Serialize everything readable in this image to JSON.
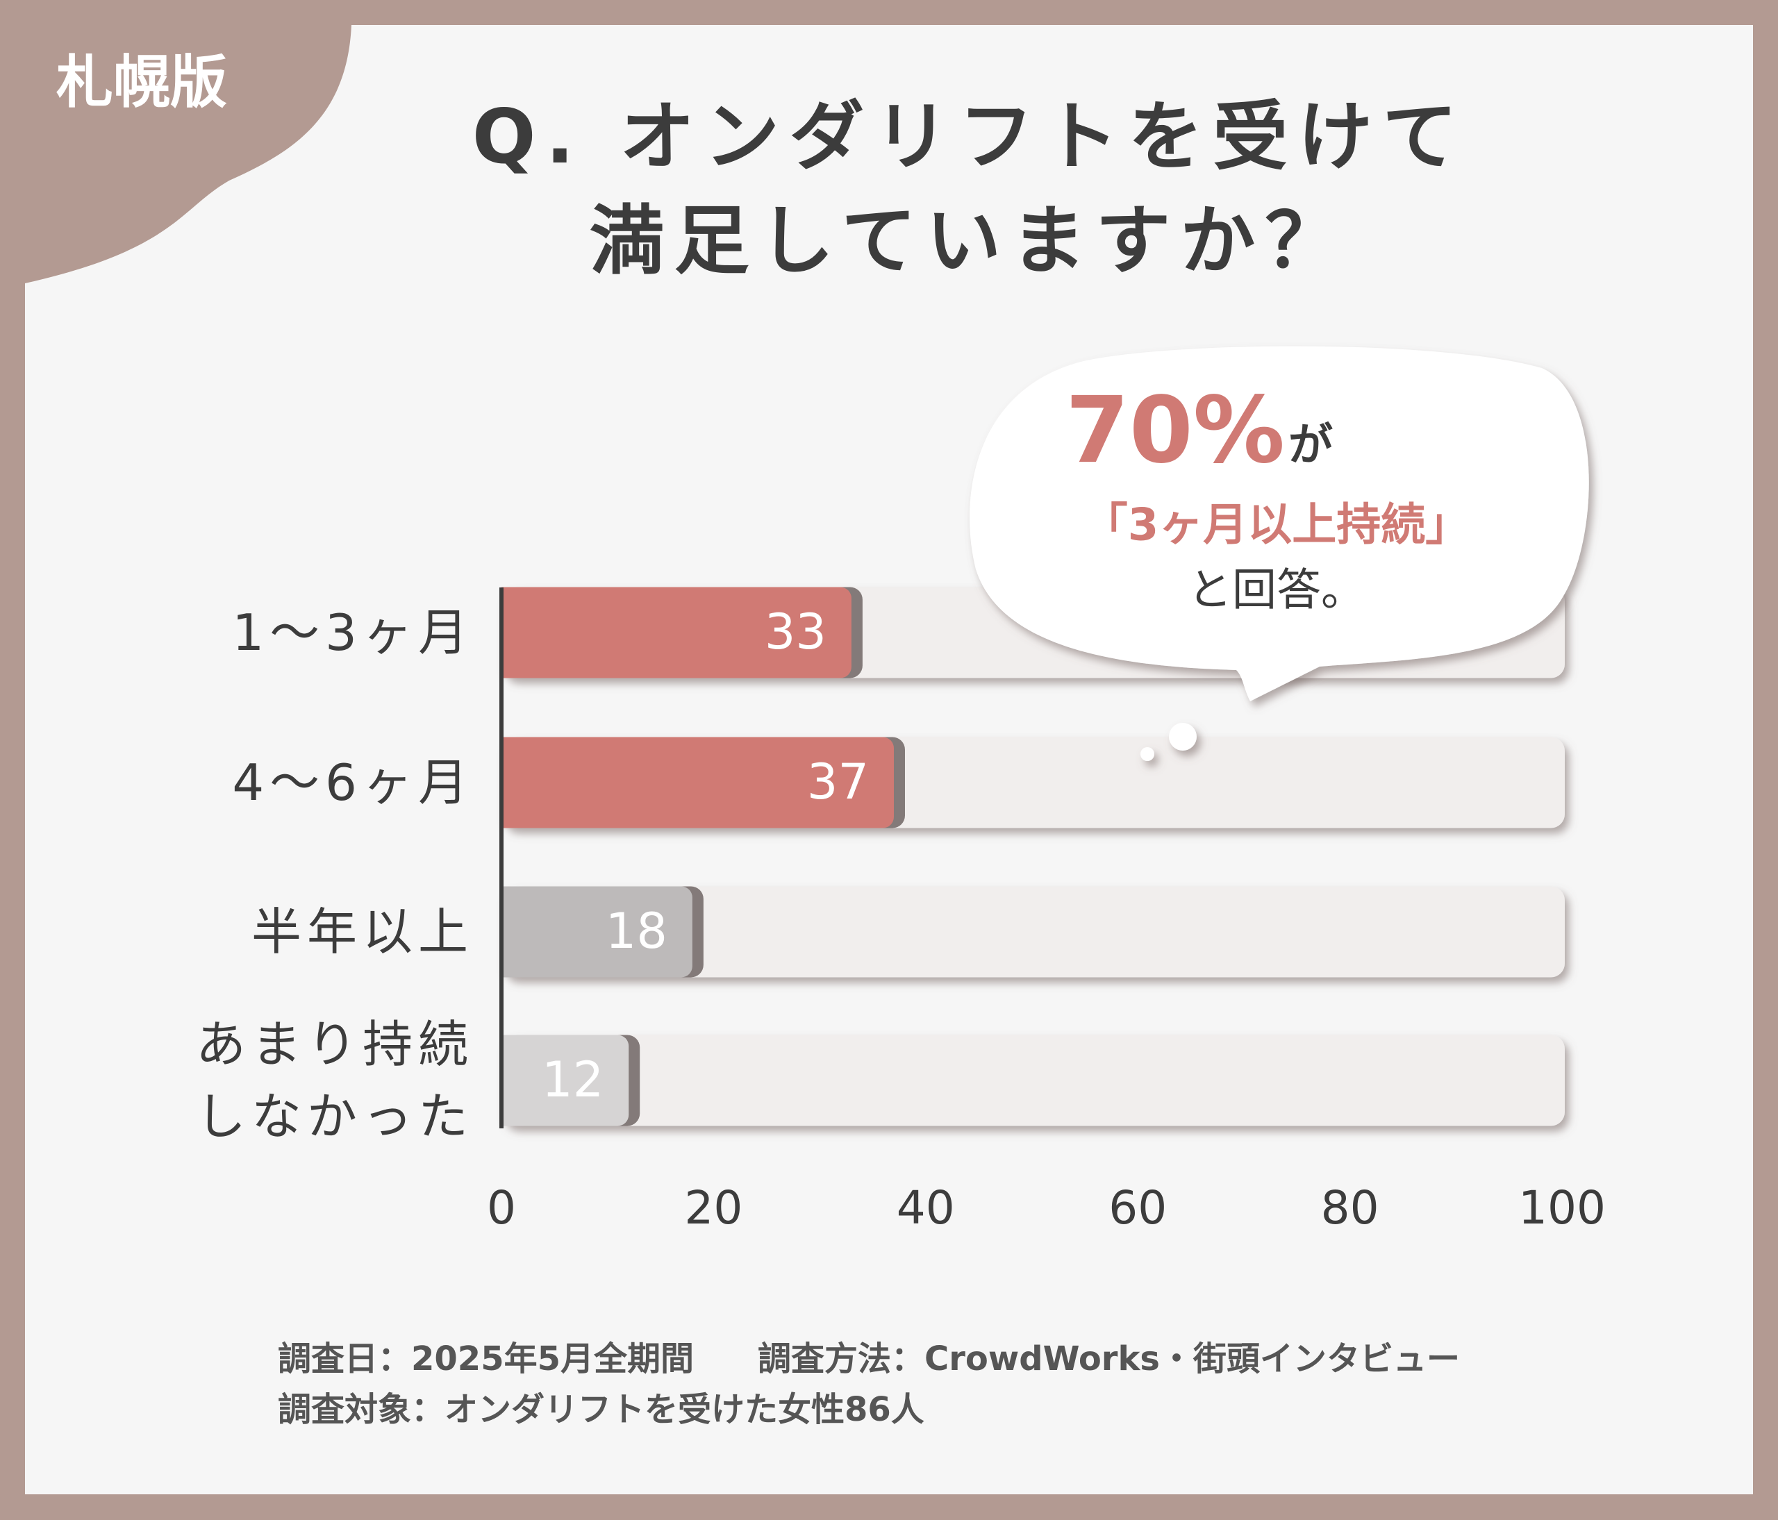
{
  "badge": "札幌版",
  "chart_data": {
    "type": "bar",
    "orientation": "horizontal",
    "title": [
      "Q. オンダリフトを受けて",
      "満足していますか？"
    ],
    "categories": [
      "1〜3ヶ月",
      "4〜6ヶ月",
      "半年以上",
      "あまり持続しなかった"
    ],
    "values": [
      33,
      37,
      18,
      12
    ],
    "colors": [
      "#d07a74",
      "#d07a74",
      "#bdbaba",
      "#d6d4d4"
    ],
    "xlim": [
      0,
      100
    ],
    "xticks": [
      0,
      20,
      40,
      60,
      80,
      100
    ],
    "annotation": {
      "highlight": "70%",
      "suffix": "が",
      "line2": "「3ヶ月以上持続」",
      "line3": "と回答。"
    }
  },
  "footer": {
    "date": "調査日：2025年5月全期間",
    "method": "調査方法：CrowdWorks・街頭インタビュー",
    "target": "調査対象：オンダリフトを受けた女性86人"
  }
}
